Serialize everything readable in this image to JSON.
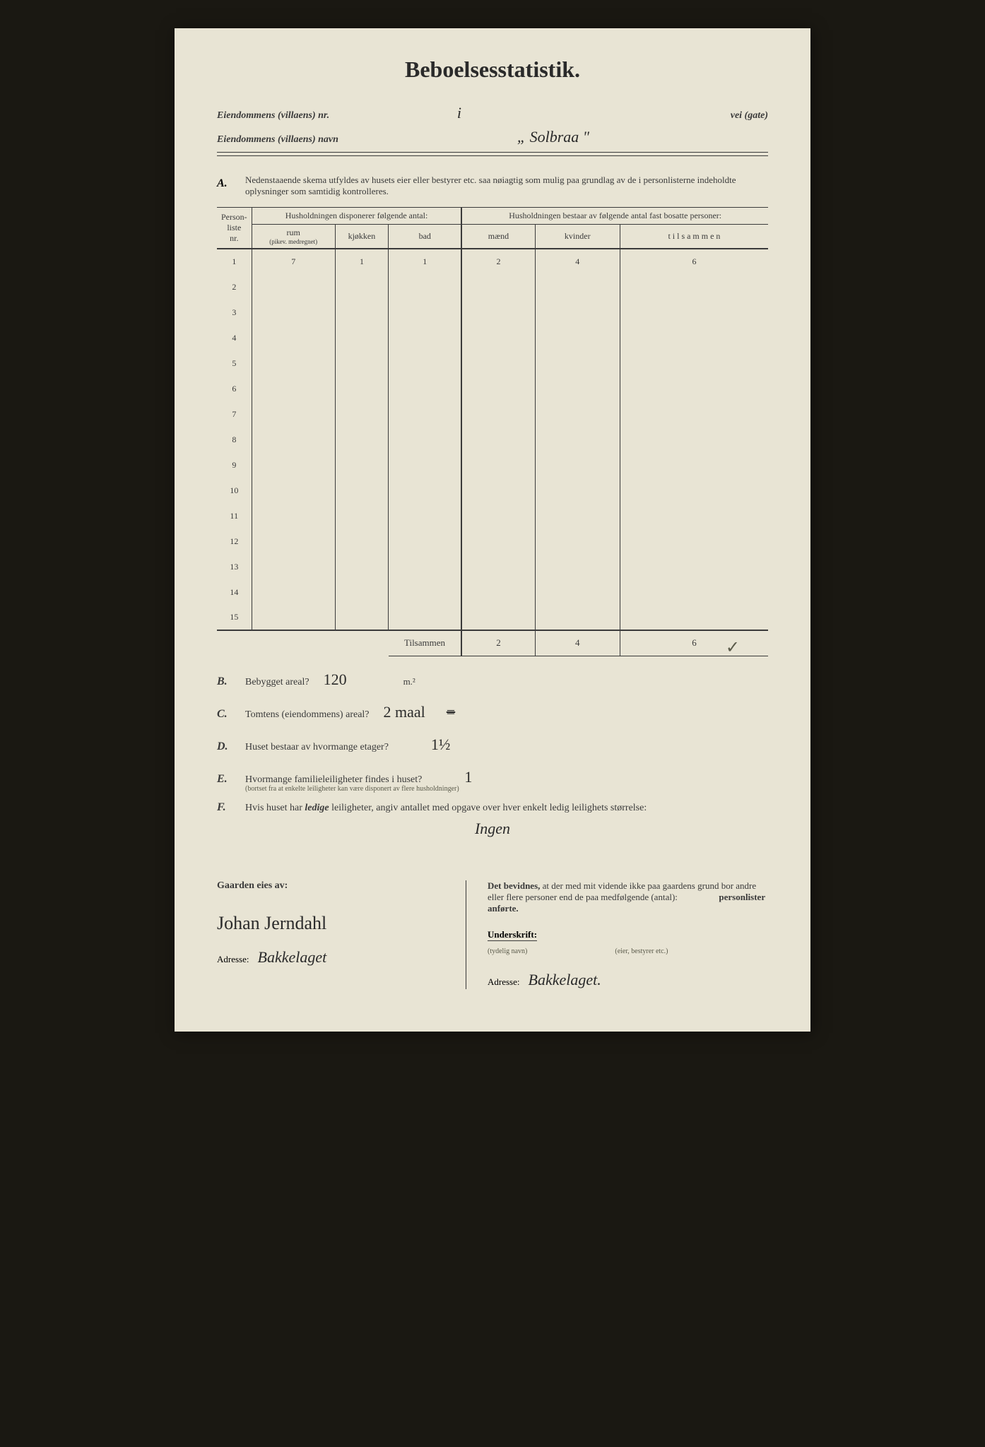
{
  "title": "Beboelsesstatistik.",
  "header": {
    "nr_label": "Eiendommens (villaens) nr.",
    "nr_value": "i",
    "vei_label": "vei (gate)",
    "navn_label": "Eiendommens (villaens) navn",
    "navn_value": "„ Solbraa \""
  },
  "sectionA": {
    "letter": "A.",
    "text": "Nedenstaaende skema utfyldes av husets eier eller bestyrer etc. saa nøiagtig som mulig paa grundlag av de i personlisterne indeholdte oplysninger som samtidig kontrolleres."
  },
  "table": {
    "col_personliste": "Person-\nliste\nnr.",
    "col_disponerer": "Husholdningen disponerer følgende antal:",
    "col_rum": "rum",
    "col_rum_note": "(pikev. medregnet)",
    "col_kjokken": "kjøkken",
    "col_bad": "bad",
    "col_bestaar": "Husholdningen bestaar av følgende antal fast bosatte personer:",
    "col_maend": "mænd",
    "col_kvinder": "kvinder",
    "col_tilsammen": "t i l s a m m e n",
    "rows": [
      {
        "nr": "1",
        "rum": "7",
        "kjokken": "1",
        "bad": "1",
        "maend": "2",
        "kvinder": "4",
        "tilsammen": "6"
      },
      {
        "nr": "2"
      },
      {
        "nr": "3"
      },
      {
        "nr": "4"
      },
      {
        "nr": "5"
      },
      {
        "nr": "6"
      },
      {
        "nr": "7"
      },
      {
        "nr": "8"
      },
      {
        "nr": "9"
      },
      {
        "nr": "10"
      },
      {
        "nr": "11"
      },
      {
        "nr": "12"
      },
      {
        "nr": "13"
      },
      {
        "nr": "14"
      },
      {
        "nr": "15"
      }
    ],
    "tilsammen_label": "Tilsammen",
    "tilsammen_maend": "2",
    "tilsammen_kvinder": "4",
    "tilsammen_total": "6",
    "checkmark": "✓"
  },
  "sectionB": {
    "letter": "B.",
    "question": "Bebygget areal?",
    "answer": "120",
    "unit": "m.²"
  },
  "sectionC": {
    "letter": "C.",
    "question": "Tomtens (eiendommens) areal?",
    "answer": "2 maal",
    "strike": "="
  },
  "sectionD": {
    "letter": "D.",
    "question": "Huset bestaar av hvormange etager?",
    "answer": "1½"
  },
  "sectionE": {
    "letter": "E.",
    "question": "Hvormange familieleiligheter findes i huset?",
    "note": "(bortset fra at enkelte leiligheter kan være disponert av flere husholdninger)",
    "answer": "1"
  },
  "sectionF": {
    "letter": "F.",
    "question": "Hvis huset har ledige leiligheter, angiv antallet med opgave over hver enkelt ledig leilighets størrelse:",
    "answer": "Ingen"
  },
  "footer": {
    "eies_label": "Gaarden eies av:",
    "owner_name": "Johan Jerndahl",
    "adresse_label": "Adresse:",
    "adresse_left": "Bakkelaget",
    "bevidnes_text": "Det bevidnes, at der med mit vidende ikke paa gaardens grund bor andre eller flere personer end de paa medfølgende (antal):",
    "personlister": "personlister anførte.",
    "underskrift_label": "Underskrift:",
    "tydelig_navn": "(tydelig navn)",
    "eier_bestyrer": "(eier, bestyrer etc.)",
    "adresse_right": "Bakkelaget."
  },
  "colors": {
    "page_bg": "#e8e4d4",
    "body_bg": "#1a1812",
    "text": "#3a3a3a",
    "handwriting": "#2a2a2a",
    "faint": "#a09a8a"
  }
}
